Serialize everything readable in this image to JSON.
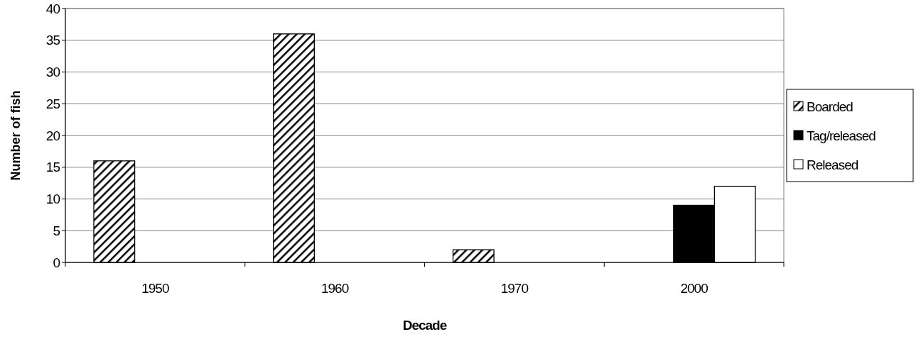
{
  "chart_data": {
    "type": "bar",
    "xlabel": "Decade",
    "ylabel": "Number of fish",
    "categories": [
      "1950",
      "1960",
      "1970",
      "2000"
    ],
    "series": [
      {
        "name": "Boarded",
        "color": "#000000",
        "values": [
          16,
          36,
          2,
          null
        ]
      },
      {
        "name": "Tag/released",
        "color": "#000000",
        "values": [
          null,
          null,
          null,
          9
        ]
      },
      {
        "name": "Released",
        "color": "#ffffff",
        "values": [
          null,
          null,
          null,
          12
        ]
      }
    ],
    "ylim": [
      0,
      40
    ],
    "yticks": [
      0,
      5,
      10,
      15,
      20,
      25,
      30,
      35,
      40
    ],
    "grid": "y",
    "legend": "right"
  }
}
